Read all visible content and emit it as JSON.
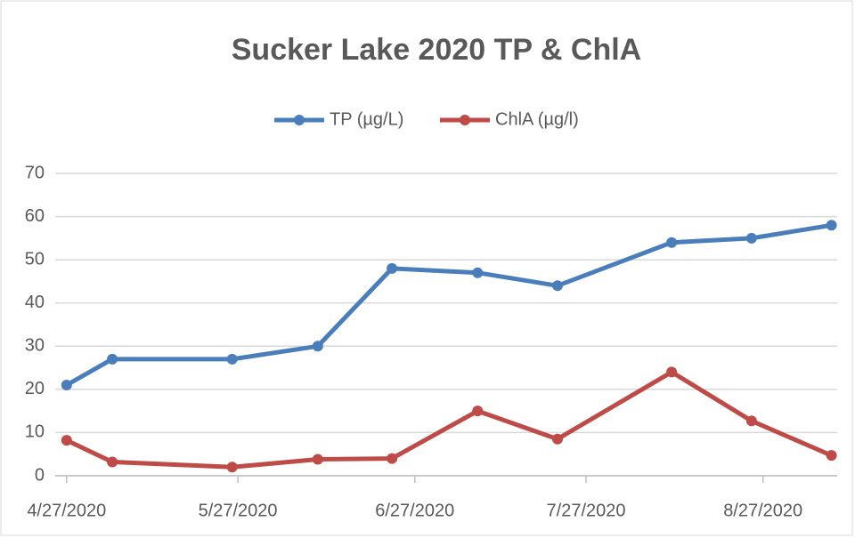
{
  "chart_data": {
    "type": "line",
    "title": "Sucker Lake 2020 TP & ChlA",
    "x": [
      "2020-04-27",
      "2020-05-05",
      "2020-05-26",
      "2020-06-10",
      "2020-06-23",
      "2020-07-08",
      "2020-07-22",
      "2020-08-11",
      "2020-08-25",
      "2020-09-08"
    ],
    "series": [
      {
        "name": "TP (µg/L)",
        "color": "#4a7ebb",
        "values": [
          21,
          27,
          27,
          30,
          48,
          47,
          44,
          54,
          55,
          58
        ]
      },
      {
        "name": "ChlA (µg/l)",
        "color": "#be4b48",
        "values": [
          8.2,
          3.2,
          2,
          3.8,
          4,
          15,
          8.5,
          24,
          12.7,
          4.7
        ]
      }
    ],
    "xlim": [
      "2020-04-25",
      "2020-09-09"
    ],
    "xticks": [
      {
        "value": "2020-04-27",
        "label": "4/27/2020"
      },
      {
        "value": "2020-05-27",
        "label": "5/27/2020"
      },
      {
        "value": "2020-06-27",
        "label": "6/27/2020"
      },
      {
        "value": "2020-07-27",
        "label": "7/27/2020"
      },
      {
        "value": "2020-08-27",
        "label": "8/27/2020"
      }
    ],
    "ylim": [
      0,
      70
    ],
    "yticks": [
      0,
      10,
      20,
      30,
      40,
      50,
      60,
      70
    ],
    "grid": true,
    "legend": "top"
  }
}
